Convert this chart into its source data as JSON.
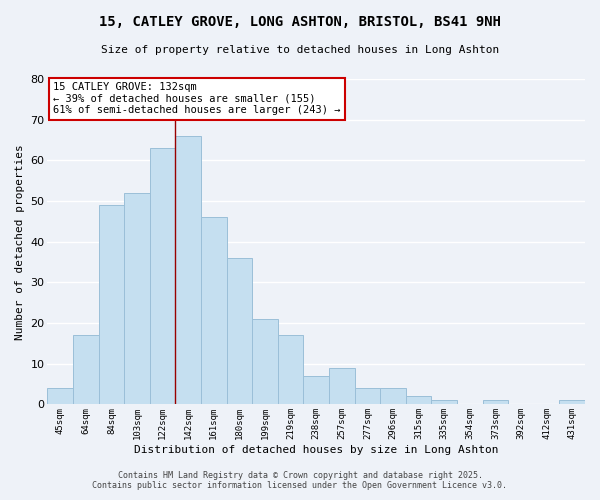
{
  "title": "15, CATLEY GROVE, LONG ASHTON, BRISTOL, BS41 9NH",
  "subtitle": "Size of property relative to detached houses in Long Ashton",
  "xlabel": "Distribution of detached houses by size in Long Ashton",
  "ylabel": "Number of detached properties",
  "bar_color": "#c5dff0",
  "bar_edge_color": "#9bbfd8",
  "bg_color": "#eef2f8",
  "grid_color": "white",
  "categories": [
    "45sqm",
    "64sqm",
    "84sqm",
    "103sqm",
    "122sqm",
    "142sqm",
    "161sqm",
    "180sqm",
    "199sqm",
    "219sqm",
    "238sqm",
    "257sqm",
    "277sqm",
    "296sqm",
    "315sqm",
    "335sqm",
    "354sqm",
    "373sqm",
    "392sqm",
    "412sqm",
    "431sqm"
  ],
  "values": [
    4,
    17,
    49,
    52,
    63,
    66,
    46,
    36,
    21,
    17,
    7,
    9,
    4,
    4,
    2,
    1,
    0,
    1,
    0,
    0,
    1
  ],
  "vline_x_index": 5,
  "vline_color": "#990000",
  "annotation_title": "15 CATLEY GROVE: 132sqm",
  "annotation_line1": "← 39% of detached houses are smaller (155)",
  "annotation_line2": "61% of semi-detached houses are larger (243) →",
  "annotation_box_edge": "#cc0000",
  "ylim": [
    0,
    80
  ],
  "yticks": [
    0,
    10,
    20,
    30,
    40,
    50,
    60,
    70,
    80
  ],
  "footer1": "Contains HM Land Registry data © Crown copyright and database right 2025.",
  "footer2": "Contains public sector information licensed under the Open Government Licence v3.0."
}
